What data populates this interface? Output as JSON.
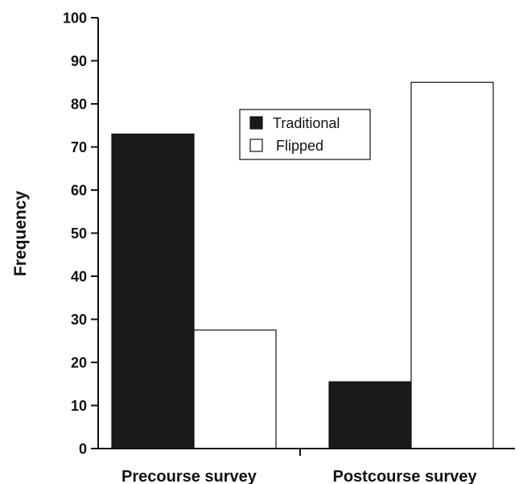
{
  "chart_data": {
    "type": "bar",
    "categories": [
      "Precourse survey",
      "Postcourse survey"
    ],
    "series": [
      {
        "name": "Traditional",
        "values": [
          73,
          15.5
        ],
        "color": "#1a1a1a"
      },
      {
        "name": "Flipped",
        "values": [
          27.5,
          85
        ],
        "color": "#ffffff"
      }
    ],
    "xlabel": "",
    "ylabel": "Frequency",
    "ylim": [
      0,
      100
    ],
    "yticks": [
      0,
      10,
      20,
      30,
      40,
      50,
      60,
      70,
      80,
      90,
      100
    ],
    "grid": false,
    "legend_position": "top-center"
  }
}
